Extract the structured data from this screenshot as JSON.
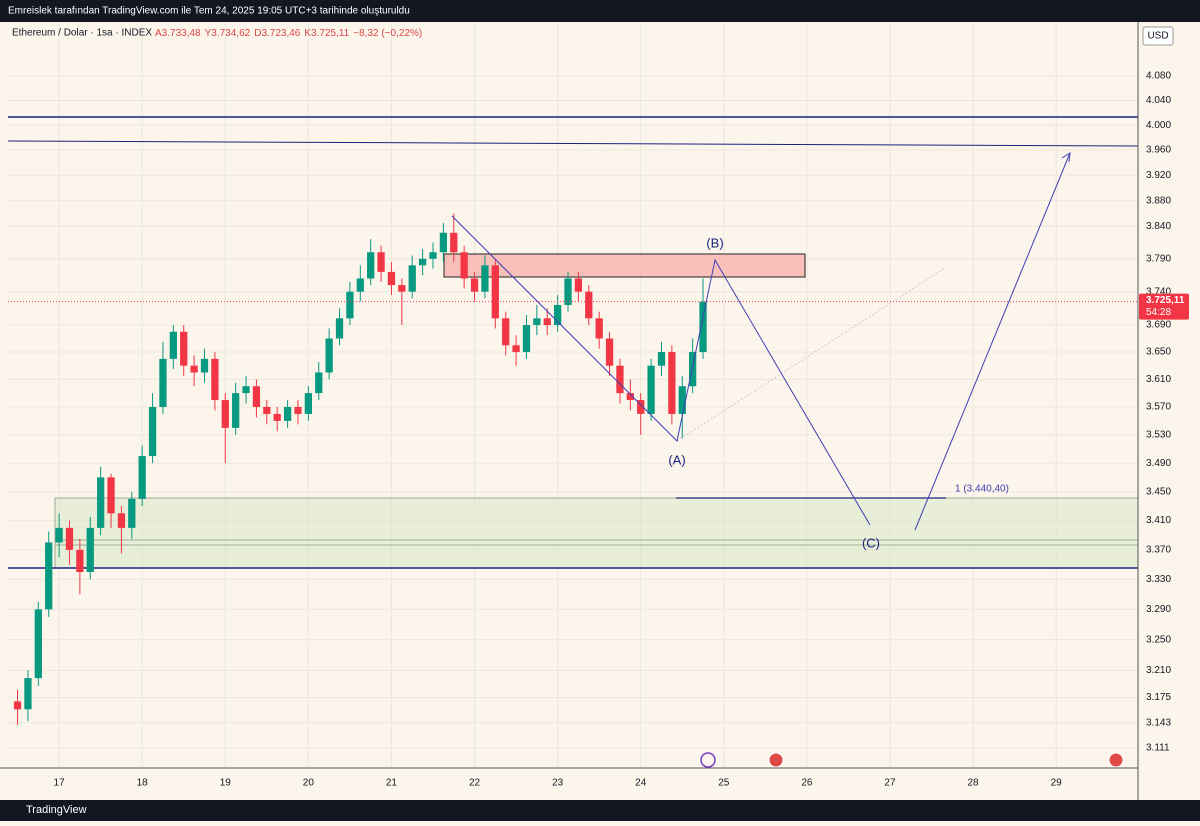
{
  "header": {
    "credit": "Emreislek tarafından TradingView.com ile Tem 24, 2025 19:05 UTC+3 tarihinde oluşturuldu",
    "symbol": "Ethereum / Dolar · 1sa · INDEX",
    "ohlc": [
      "A3.733,48",
      "Y3.734,62",
      "D3.723,46",
      "K3.725,11",
      "−8,32 (−0,22%)"
    ]
  },
  "chart_data": {
    "type": "candlestick",
    "log_scale": true,
    "grid": true,
    "up_color": "#089981",
    "down_color": "#f23645",
    "currency": "USD",
    "x": [
      16.5,
      16.625,
      16.75,
      16.875,
      17,
      17.125,
      17.25,
      17.375,
      17.5,
      17.625,
      17.75,
      17.875,
      18,
      18.125,
      18.25,
      18.375,
      18.5,
      18.625,
      18.75,
      18.875,
      19,
      19.125,
      19.25,
      19.375,
      19.5,
      19.625,
      19.75,
      19.875,
      20,
      20.125,
      20.25,
      20.375,
      20.5,
      20.625,
      20.75,
      20.875,
      21,
      21.125,
      21.25,
      21.375,
      21.5,
      21.625,
      21.75,
      21.875,
      22,
      22.125,
      22.25,
      22.375,
      22.5,
      22.625,
      22.75,
      22.875,
      23,
      23.125,
      23.25,
      23.375,
      23.5,
      23.625,
      23.75,
      23.875,
      24,
      24.125,
      24.25,
      24.375,
      24.5,
      24.625,
      24.75
    ],
    "open": [
      3170,
      3160,
      3200,
      3290,
      3380,
      3400,
      3370,
      3340,
      3400,
      3470,
      3420,
      3400,
      3440,
      3500,
      3570,
      3640,
      3680,
      3630,
      3620,
      3640,
      3580,
      3540,
      3590,
      3600,
      3570,
      3560,
      3550,
      3570,
      3560,
      3590,
      3620,
      3670,
      3700,
      3740,
      3760,
      3800,
      3770,
      3750,
      3740,
      3780,
      3790,
      3800,
      3830,
      3800,
      3760,
      3740,
      3780,
      3700,
      3660,
      3650,
      3690,
      3700,
      3690,
      3720,
      3760,
      3740,
      3700,
      3670,
      3630,
      3590,
      3580,
      3560,
      3630,
      3650,
      3560,
      3600,
      3650
    ],
    "high": [
      3185,
      3210,
      3300,
      3395,
      3420,
      3410,
      3385,
      3415,
      3485,
      3475,
      3430,
      3450,
      3515,
      3590,
      3665,
      3690,
      3690,
      3645,
      3655,
      3650,
      3590,
      3605,
      3615,
      3610,
      3580,
      3570,
      3580,
      3580,
      3600,
      3635,
      3685,
      3715,
      3755,
      3780,
      3820,
      3810,
      3785,
      3760,
      3795,
      3805,
      3815,
      3845,
      3860,
      3810,
      3770,
      3795,
      3790,
      3710,
      3675,
      3705,
      3720,
      3715,
      3735,
      3770,
      3770,
      3750,
      3710,
      3680,
      3640,
      3610,
      3590,
      3640,
      3665,
      3660,
      3615,
      3670,
      3760
    ],
    "low": [
      3140,
      3145,
      3190,
      3280,
      3360,
      3350,
      3310,
      3330,
      3390,
      3400,
      3365,
      3385,
      3430,
      3490,
      3560,
      3625,
      3615,
      3600,
      3605,
      3565,
      3490,
      3530,
      3575,
      3555,
      3545,
      3535,
      3540,
      3545,
      3550,
      3580,
      3610,
      3660,
      3690,
      3725,
      3750,
      3755,
      3735,
      3690,
      3730,
      3765,
      3775,
      3785,
      3785,
      3745,
      3725,
      3730,
      3685,
      3645,
      3630,
      3640,
      3675,
      3675,
      3680,
      3710,
      3725,
      3690,
      3655,
      3615,
      3575,
      3565,
      3530,
      3550,
      3615,
      3545,
      3525,
      3590,
      3640
    ],
    "close": [
      3160,
      3200,
      3290,
      3380,
      3400,
      3370,
      3340,
      3400,
      3470,
      3420,
      3400,
      3440,
      3500,
      3570,
      3640,
      3680,
      3630,
      3620,
      3640,
      3580,
      3540,
      3590,
      3600,
      3570,
      3560,
      3550,
      3570,
      3560,
      3590,
      3620,
      3670,
      3700,
      3740,
      3760,
      3800,
      3770,
      3750,
      3740,
      3780,
      3790,
      3800,
      3830,
      3800,
      3760,
      3740,
      3780,
      3700,
      3660,
      3650,
      3690,
      3700,
      3690,
      3720,
      3760,
      3740,
      3700,
      3670,
      3630,
      3590,
      3580,
      3560,
      3630,
      3650,
      3560,
      3600,
      3650,
      3725
    ],
    "xlim": [
      16.385,
      29.985
    ],
    "xticks": [
      17,
      18,
      19,
      20,
      21,
      22,
      23,
      24,
      25,
      26,
      27,
      28,
      29
    ],
    "ylim": [
      3086,
      4170
    ],
    "yticks": [
      {
        "value": 4080,
        "label": "4.080"
      },
      {
        "value": 4040,
        "label": "4.040"
      },
      {
        "value": 4000,
        "label": "4.000"
      },
      {
        "value": 3960,
        "label": "3.960"
      },
      {
        "value": 3920,
        "label": "3.920"
      },
      {
        "value": 3880,
        "label": "3.880"
      },
      {
        "value": 3840,
        "label": "3.840"
      },
      {
        "value": 3790,
        "label": "3.790"
      },
      {
        "value": 3740,
        "label": "3.740"
      },
      {
        "value": 3690,
        "label": "3.690"
      },
      {
        "value": 3650,
        "label": "3.650"
      },
      {
        "value": 3610,
        "label": "3.610"
      },
      {
        "value": 3570,
        "label": "3.570"
      },
      {
        "value": 3530,
        "label": "3.530"
      },
      {
        "value": 3490,
        "label": "3.490"
      },
      {
        "value": 3450,
        "label": "3.450"
      },
      {
        "value": 3410,
        "label": "3.410"
      },
      {
        "value": 3370,
        "label": "3.370"
      },
      {
        "value": 3330,
        "label": "3.330"
      },
      {
        "value": 3290,
        "label": "3.290"
      },
      {
        "value": 3250,
        "label": "3.250"
      },
      {
        "value": 3210,
        "label": "3.210"
      },
      {
        "value": 3175,
        "label": "3.175"
      },
      {
        "value": 3143,
        "label": "3.143"
      },
      {
        "value": 3111,
        "label": "3.111"
      }
    ],
    "last_price": {
      "value": 3725.11,
      "label": "3.725,11"
    },
    "countdown": "54:28",
    "annotations": [
      "(A)",
      "(B)",
      "(C)",
      "1 (3.440,40)"
    ]
  },
  "footer": {
    "brand": "TradingView"
  }
}
